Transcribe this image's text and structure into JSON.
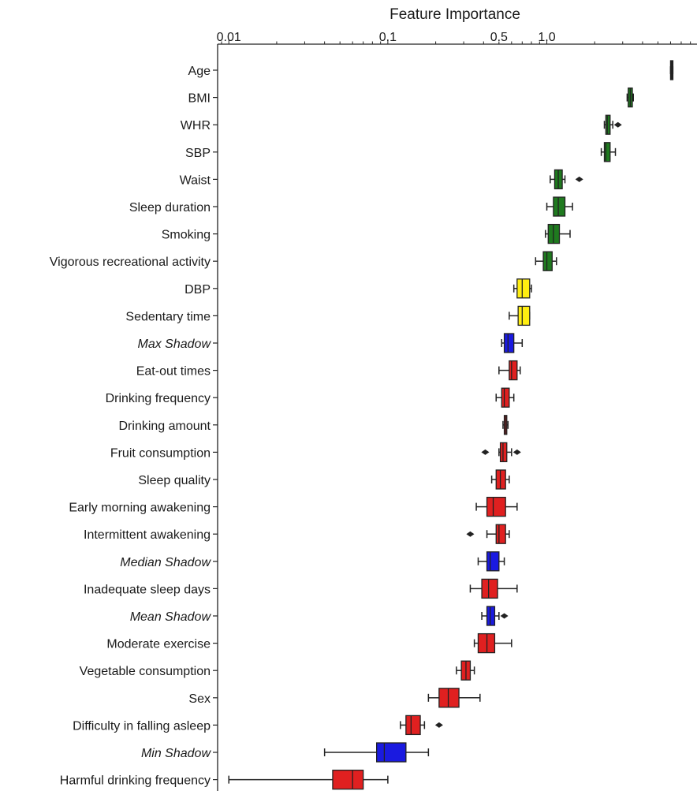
{
  "chart_data": {
    "type": "box",
    "xlabel": "Feature Importance",
    "xscale": "log",
    "x_ticks": [
      {
        "value": 0.01,
        "label": "0.01"
      },
      {
        "value": 0.1,
        "label": "0.1"
      },
      {
        "value": 0.5,
        "label": "0.5"
      },
      {
        "value": 1.0,
        "label": "1.0"
      }
    ],
    "xlim": [
      0.0085,
      8.8
    ],
    "colors": {
      "black": "#222222",
      "green": "#1f7a1f",
      "yellow": "#ffee11",
      "blue": "#1a1ae0",
      "red": "#e02020"
    },
    "features": [
      {
        "name": "Age",
        "italic": false,
        "color": "black",
        "min": 6.0,
        "q1": 6.0,
        "median": 6.1,
        "q3": 6.2,
        "max": 6.2,
        "outliers": []
      },
      {
        "name": "BMI",
        "italic": false,
        "color": "green",
        "min": 3.2,
        "q1": 3.25,
        "median": 3.35,
        "q3": 3.45,
        "max": 3.5,
        "outliers": []
      },
      {
        "name": "WHR",
        "italic": false,
        "color": "green",
        "min": 2.3,
        "q1": 2.35,
        "median": 2.4,
        "q3": 2.5,
        "max": 2.6,
        "outliers": [
          2.8
        ]
      },
      {
        "name": "SBP",
        "italic": false,
        "color": "green",
        "min": 2.2,
        "q1": 2.3,
        "median": 2.35,
        "q3": 2.5,
        "max": 2.7,
        "outliers": []
      },
      {
        "name": "Waist",
        "italic": false,
        "color": "green",
        "min": 1.05,
        "q1": 1.12,
        "median": 1.18,
        "q3": 1.25,
        "max": 1.3,
        "outliers": [
          1.6
        ]
      },
      {
        "name": "Sleep duration",
        "italic": false,
        "color": "green",
        "min": 1.0,
        "q1": 1.1,
        "median": 1.18,
        "q3": 1.3,
        "max": 1.45,
        "outliers": []
      },
      {
        "name": "Smoking",
        "italic": false,
        "color": "green",
        "min": 0.98,
        "q1": 1.02,
        "median": 1.1,
        "q3": 1.2,
        "max": 1.4,
        "outliers": []
      },
      {
        "name": "Vigorous recreational activity",
        "italic": false,
        "color": "green",
        "min": 0.85,
        "q1": 0.95,
        "median": 1.0,
        "q3": 1.08,
        "max": 1.15,
        "outliers": []
      },
      {
        "name": "DBP",
        "italic": false,
        "color": "yellow",
        "min": 0.62,
        "q1": 0.65,
        "median": 0.7,
        "q3": 0.78,
        "max": 0.8,
        "outliers": []
      },
      {
        "name": "Sedentary time",
        "italic": false,
        "color": "yellow",
        "min": 0.58,
        "q1": 0.66,
        "median": 0.7,
        "q3": 0.78,
        "max": 0.78,
        "outliers": []
      },
      {
        "name": "Max Shadow",
        "italic": true,
        "color": "blue",
        "min": 0.52,
        "q1": 0.54,
        "median": 0.57,
        "q3": 0.62,
        "max": 0.7,
        "outliers": []
      },
      {
        "name": "Eat-out times",
        "italic": false,
        "color": "red",
        "min": 0.5,
        "q1": 0.58,
        "median": 0.6,
        "q3": 0.65,
        "max": 0.68,
        "outliers": []
      },
      {
        "name": "Drinking frequency",
        "italic": false,
        "color": "red",
        "min": 0.48,
        "q1": 0.52,
        "median": 0.54,
        "q3": 0.58,
        "max": 0.62,
        "outliers": []
      },
      {
        "name": "Drinking amount",
        "italic": false,
        "color": "red",
        "min": 0.53,
        "q1": 0.54,
        "median": 0.55,
        "q3": 0.56,
        "max": 0.57,
        "outliers": []
      },
      {
        "name": "Fruit consumption",
        "italic": false,
        "color": "red",
        "min": 0.5,
        "q1": 0.51,
        "median": 0.53,
        "q3": 0.56,
        "max": 0.6,
        "outliers": [
          0.41,
          0.65
        ]
      },
      {
        "name": "Sleep quality",
        "italic": false,
        "color": "red",
        "min": 0.45,
        "q1": 0.48,
        "median": 0.51,
        "q3": 0.55,
        "max": 0.58,
        "outliers": []
      },
      {
        "name": "Early morning awakening",
        "italic": false,
        "color": "red",
        "min": 0.36,
        "q1": 0.42,
        "median": 0.46,
        "q3": 0.55,
        "max": 0.65,
        "outliers": []
      },
      {
        "name": "Intermittent awakening",
        "italic": false,
        "color": "red",
        "min": 0.42,
        "q1": 0.48,
        "median": 0.5,
        "q3": 0.55,
        "max": 0.58,
        "outliers": [
          0.33
        ]
      },
      {
        "name": "Median Shadow",
        "italic": true,
        "color": "blue",
        "min": 0.37,
        "q1": 0.42,
        "median": 0.44,
        "q3": 0.5,
        "max": 0.54,
        "outliers": []
      },
      {
        "name": "Inadequate sleep days",
        "italic": false,
        "color": "red",
        "min": 0.33,
        "q1": 0.39,
        "median": 0.43,
        "q3": 0.49,
        "max": 0.65,
        "outliers": []
      },
      {
        "name": "Mean Shadow",
        "italic": true,
        "color": "blue",
        "min": 0.39,
        "q1": 0.42,
        "median": 0.44,
        "q3": 0.47,
        "max": 0.5,
        "outliers": [
          0.54
        ]
      },
      {
        "name": "Moderate exercise",
        "italic": false,
        "color": "red",
        "min": 0.35,
        "q1": 0.37,
        "median": 0.42,
        "q3": 0.47,
        "max": 0.6,
        "outliers": []
      },
      {
        "name": "Vegetable consumption",
        "italic": false,
        "color": "red",
        "min": 0.27,
        "q1": 0.29,
        "median": 0.31,
        "q3": 0.33,
        "max": 0.35,
        "outliers": []
      },
      {
        "name": "Sex",
        "italic": false,
        "color": "red",
        "min": 0.18,
        "q1": 0.21,
        "median": 0.24,
        "q3": 0.28,
        "max": 0.38,
        "outliers": []
      },
      {
        "name": "Difficulty in falling asleep",
        "italic": false,
        "color": "red",
        "min": 0.12,
        "q1": 0.13,
        "median": 0.14,
        "q3": 0.16,
        "max": 0.17,
        "outliers": [
          0.21
        ]
      },
      {
        "name": "Min Shadow",
        "italic": true,
        "color": "blue",
        "min": 0.04,
        "q1": 0.085,
        "median": 0.095,
        "q3": 0.13,
        "max": 0.18,
        "outliers": []
      },
      {
        "name": "Harmful drinking frequency",
        "italic": false,
        "color": "red",
        "min": 0.01,
        "q1": 0.045,
        "median": 0.06,
        "q3": 0.07,
        "max": 0.1,
        "outliers": []
      }
    ]
  }
}
